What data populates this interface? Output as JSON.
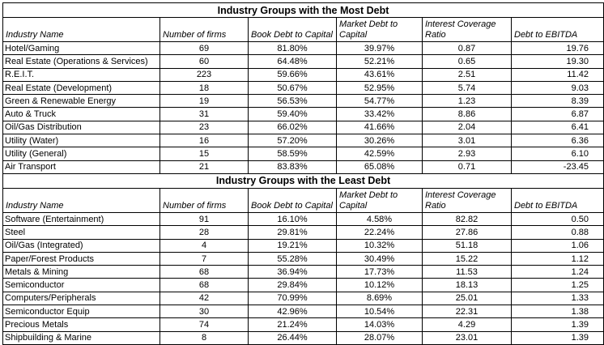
{
  "tables": [
    {
      "title": "Industry Groups with the Most Debt",
      "headers": [
        "Industry Name",
        "Number of firms",
        "Book Debt to Capital",
        "Market Debt to Capital",
        "Interest Coverage Ratio",
        "Debt to EBITDA"
      ],
      "rows": [
        [
          "Hotel/Gaming",
          "69",
          "81.80%",
          "39.97%",
          "0.87",
          "19.76"
        ],
        [
          "Real Estate (Operations & Services)",
          "60",
          "64.48%",
          "52.21%",
          "0.65",
          "19.30"
        ],
        [
          "R.E.I.T.",
          "223",
          "59.66%",
          "43.61%",
          "2.51",
          "11.42"
        ],
        [
          "Real Estate (Development)",
          "18",
          "50.67%",
          "52.95%",
          "5.74",
          "9.03"
        ],
        [
          "Green & Renewable Energy",
          "19",
          "56.53%",
          "54.77%",
          "1.23",
          "8.39"
        ],
        [
          "Auto & Truck",
          "31",
          "59.40%",
          "33.42%",
          "8.86",
          "6.87"
        ],
        [
          "Oil/Gas Distribution",
          "23",
          "66.02%",
          "41.66%",
          "2.04",
          "6.41"
        ],
        [
          "Utility (Water)",
          "16",
          "57.20%",
          "30.26%",
          "3.01",
          "6.36"
        ],
        [
          "Utility (General)",
          "15",
          "58.59%",
          "42.59%",
          "2.93",
          "6.10"
        ],
        [
          "Air Transport",
          "21",
          "83.83%",
          "65.08%",
          "0.71",
          "-23.45"
        ]
      ]
    },
    {
      "title": "Industry Groups with the Least Debt",
      "headers": [
        "Industry Name",
        "Number of firms",
        "Book Debt to Capital",
        "Market Debt to Capital",
        "Interest Coverage Ratio",
        "Debt to EBITDA"
      ],
      "rows": [
        [
          "Software (Entertainment)",
          "91",
          "16.10%",
          "4.58%",
          "82.82",
          "0.50"
        ],
        [
          "Steel",
          "28",
          "29.81%",
          "22.24%",
          "27.86",
          "0.88"
        ],
        [
          "Oil/Gas (Integrated)",
          "4",
          "19.21%",
          "10.32%",
          "51.18",
          "1.06"
        ],
        [
          "Paper/Forest Products",
          "7",
          "55.28%",
          "30.49%",
          "15.22",
          "1.12"
        ],
        [
          "Metals & Mining",
          "68",
          "36.94%",
          "17.73%",
          "11.53",
          "1.24"
        ],
        [
          "Semiconductor",
          "68",
          "29.84%",
          "10.12%",
          "18.13",
          "1.25"
        ],
        [
          "Computers/Peripherals",
          "42",
          "70.99%",
          "8.69%",
          "25.01",
          "1.33"
        ],
        [
          "Semiconductor Equip",
          "30",
          "42.96%",
          "10.54%",
          "22.31",
          "1.38"
        ],
        [
          "Precious Metals",
          "74",
          "21.24%",
          "14.03%",
          "4.29",
          "1.39"
        ],
        [
          "Shipbuilding & Marine",
          "8",
          "26.44%",
          "28.07%",
          "23.01",
          "1.39"
        ]
      ]
    }
  ],
  "chart_data": [
    {
      "type": "table",
      "title": "Industry Groups with the Most Debt",
      "columns": [
        "Industry Name",
        "Number of firms",
        "Book Debt to Capital",
        "Market Debt to Capital",
        "Interest Coverage Ratio",
        "Debt to EBITDA"
      ],
      "rows": [
        [
          "Hotel/Gaming",
          69,
          "81.80%",
          "39.97%",
          0.87,
          19.76
        ],
        [
          "Real Estate (Operations & Services)",
          60,
          "64.48%",
          "52.21%",
          0.65,
          19.3
        ],
        [
          "R.E.I.T.",
          223,
          "59.66%",
          "43.61%",
          2.51,
          11.42
        ],
        [
          "Real Estate (Development)",
          18,
          "50.67%",
          "52.95%",
          5.74,
          9.03
        ],
        [
          "Green & Renewable Energy",
          19,
          "56.53%",
          "54.77%",
          1.23,
          8.39
        ],
        [
          "Auto & Truck",
          31,
          "59.40%",
          "33.42%",
          8.86,
          6.87
        ],
        [
          "Oil/Gas Distribution",
          23,
          "66.02%",
          "41.66%",
          2.04,
          6.41
        ],
        [
          "Utility (Water)",
          16,
          "57.20%",
          "30.26%",
          3.01,
          6.36
        ],
        [
          "Utility (General)",
          15,
          "58.59%",
          "42.59%",
          2.93,
          6.1
        ],
        [
          "Air Transport",
          21,
          "83.83%",
          "65.08%",
          0.71,
          -23.45
        ]
      ]
    },
    {
      "type": "table",
      "title": "Industry Groups with the Least Debt",
      "columns": [
        "Industry Name",
        "Number of firms",
        "Book Debt to Capital",
        "Market Debt to Capital",
        "Interest Coverage Ratio",
        "Debt to EBITDA"
      ],
      "rows": [
        [
          "Software (Entertainment)",
          91,
          "16.10%",
          "4.58%",
          82.82,
          0.5
        ],
        [
          "Steel",
          28,
          "29.81%",
          "22.24%",
          27.86,
          0.88
        ],
        [
          "Oil/Gas (Integrated)",
          4,
          "19.21%",
          "10.32%",
          51.18,
          1.06
        ],
        [
          "Paper/Forest Products",
          7,
          "55.28%",
          "30.49%",
          15.22,
          1.12
        ],
        [
          "Metals & Mining",
          68,
          "36.94%",
          "17.73%",
          11.53,
          1.24
        ],
        [
          "Semiconductor",
          68,
          "29.84%",
          "10.12%",
          18.13,
          1.25
        ],
        [
          "Computers/Peripherals",
          42,
          "70.99%",
          "8.69%",
          25.01,
          1.33
        ],
        [
          "Semiconductor Equip",
          30,
          "42.96%",
          "10.54%",
          22.31,
          1.38
        ],
        [
          "Precious Metals",
          74,
          "21.24%",
          "14.03%",
          4.29,
          1.39
        ],
        [
          "Shipbuilding & Marine",
          8,
          "26.44%",
          "28.07%",
          23.01,
          1.39
        ]
      ]
    }
  ]
}
